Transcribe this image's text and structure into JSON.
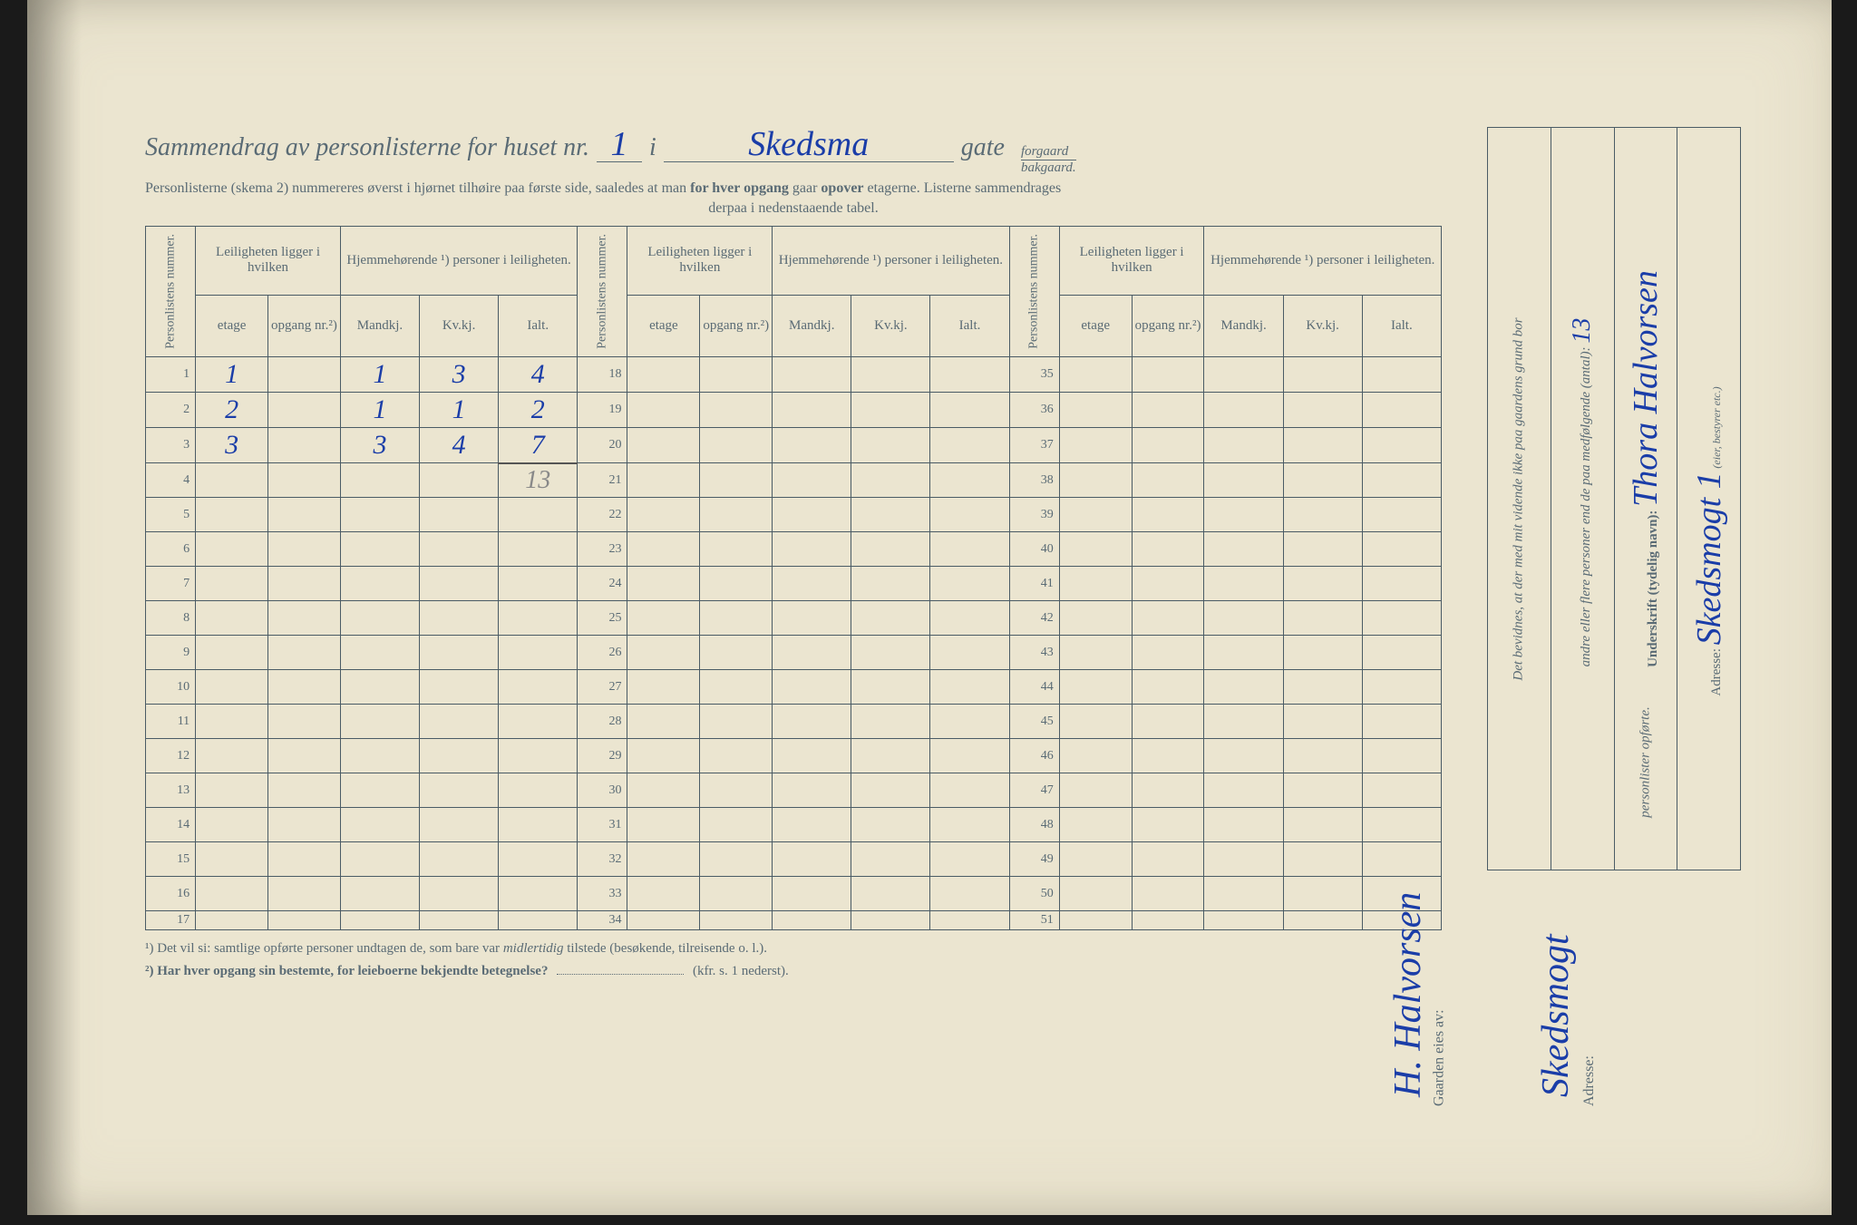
{
  "header": {
    "title_prefix": "Sammendrag av personlisterne for huset nr.",
    "house_nr": "1",
    "i": "i",
    "street": "Skedsma",
    "gate": "gate",
    "forgaard": "forgaard",
    "bakgaard": "bakgaard.",
    "subtitle": "Personlisterne (skema 2) nummereres øverst i hjørnet tilhøire paa første side, saaledes at man ",
    "subtitle_b1": "for hver opgang",
    "subtitle_2": " gaar ",
    "subtitle_b2": "opover",
    "subtitle_3": " etagerne.   Listerne sammendrages",
    "subtitle_center": "derpaa i nedenstaaende tabel."
  },
  "table_headers": {
    "personlistens_nummer": "Personlistens nummer.",
    "leiligheten": "Leiligheten ligger i hvilken",
    "hjemmehorende": "Hjemmehørende ¹) personer i leiligheten.",
    "etage": "etage",
    "opgang": "opgang nr.²)",
    "mandkj": "Mandkj.",
    "kvkj": "Kv.kj.",
    "ialt": "Ialt."
  },
  "rows_a": [
    {
      "n": "1",
      "etage": "1",
      "opg": "",
      "m": "1",
      "k": "3",
      "i": "4"
    },
    {
      "n": "2",
      "etage": "2",
      "opg": "",
      "m": "1",
      "k": "1",
      "i": "2"
    },
    {
      "n": "3",
      "etage": "3",
      "opg": "",
      "m": "3",
      "k": "4",
      "i": "7"
    },
    {
      "n": "4",
      "etage": "",
      "opg": "",
      "m": "",
      "k": "",
      "i": ""
    },
    {
      "n": "5",
      "etage": "",
      "opg": "",
      "m": "",
      "k": "",
      "i": ""
    },
    {
      "n": "6",
      "etage": "",
      "opg": "",
      "m": "",
      "k": "",
      "i": ""
    },
    {
      "n": "7",
      "etage": "",
      "opg": "",
      "m": "",
      "k": "",
      "i": ""
    },
    {
      "n": "8",
      "etage": "",
      "opg": "",
      "m": "",
      "k": "",
      "i": ""
    },
    {
      "n": "9",
      "etage": "",
      "opg": "",
      "m": "",
      "k": "",
      "i": ""
    },
    {
      "n": "10",
      "etage": "",
      "opg": "",
      "m": "",
      "k": "",
      "i": ""
    },
    {
      "n": "11",
      "etage": "",
      "opg": "",
      "m": "",
      "k": "",
      "i": ""
    },
    {
      "n": "12",
      "etage": "",
      "opg": "",
      "m": "",
      "k": "",
      "i": ""
    },
    {
      "n": "13",
      "etage": "",
      "opg": "",
      "m": "",
      "k": "",
      "i": ""
    },
    {
      "n": "14",
      "etage": "",
      "opg": "",
      "m": "",
      "k": "",
      "i": ""
    },
    {
      "n": "15",
      "etage": "",
      "opg": "",
      "m": "",
      "k": "",
      "i": ""
    },
    {
      "n": "16",
      "etage": "",
      "opg": "",
      "m": "",
      "k": "",
      "i": ""
    },
    {
      "n": "17",
      "etage": "",
      "opg": "",
      "m": "",
      "k": "",
      "i": ""
    }
  ],
  "rows_b_start": 18,
  "rows_c_start": 35,
  "pencil_total": "13",
  "right_panel": {
    "bevidnes": "Det bevidnes, at der med mit vidende ikke paa gaardens grund bor",
    "andre": "andre eller flere personer end de paa medfølgende (antal):",
    "antal": "13",
    "personlister": "personlister opførte.",
    "underskrift_label": "Underskrift (tydelig navn):",
    "underskrift": "Thora Halvorsen",
    "bestyrer": "(eier, bestyrer etc.)",
    "adresse_label": "Adresse:",
    "adresse": "Skedsmogt 1"
  },
  "owner": {
    "gaarden_eies": "Gaarden eies av:",
    "owner_name": "H. Halvorsen",
    "adresse_label": "Adresse:",
    "adresse": "Skedsmogt"
  },
  "footnotes": {
    "f1": "¹)  Det vil si: samtlige opførte personer undtagen de, som bare var ",
    "f1_i": "midlertidig",
    "f1_b": " tilstede (besøkende, tilreisende o. l.).",
    "f2": "²)  Har hver opgang sin bestemte, for leieboerne bekjendte betegnelse?",
    "f2_b": "(kfr. s. 1 nederst)."
  },
  "style": {
    "paper_bg": "#ebe5d0",
    "ink_print": "#5a6b75",
    "ink_hand": "#1a3da8",
    "pencil": "#888888"
  }
}
